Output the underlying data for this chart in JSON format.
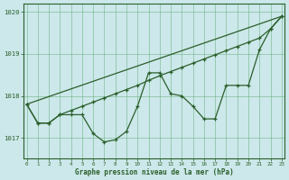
{
  "xlabel": "Graphe pression niveau de la mer (hPa)",
  "ylim": [
    1016.5,
    1020.2
  ],
  "xlim": [
    -0.3,
    23.3
  ],
  "yticks": [
    1017,
    1018,
    1019,
    1020
  ],
  "xticks": [
    0,
    1,
    2,
    3,
    4,
    5,
    6,
    7,
    8,
    9,
    10,
    11,
    12,
    13,
    14,
    15,
    16,
    17,
    18,
    19,
    20,
    21,
    22,
    23
  ],
  "background_color": "#cce8ea",
  "grid_color": "#5aaa70",
  "line_color": "#2a5e2a",
  "line1_y": [
    1017.8,
    1017.35,
    1017.35,
    1017.55,
    1017.55,
    1017.55,
    1017.1,
    1016.9,
    1016.95,
    1017.15,
    1017.75,
    1018.55,
    1018.55,
    1018.05,
    1018.0,
    1017.75,
    1017.45,
    1017.45,
    1018.25,
    1018.25,
    1018.25,
    1019.1,
    1019.6,
    1019.9
  ],
  "line2_y": [
    1017.8,
    1017.35,
    1017.35,
    1017.55,
    1017.65,
    1017.75,
    1017.85,
    1017.95,
    1018.05,
    1018.15,
    1018.25,
    1018.37,
    1018.48,
    1018.58,
    1018.68,
    1018.78,
    1018.88,
    1018.98,
    1019.08,
    1019.18,
    1019.28,
    1019.38,
    1019.6,
    1019.9
  ],
  "line3_x": [
    0,
    23
  ],
  "line3_y": [
    1017.8,
    1019.9
  ]
}
